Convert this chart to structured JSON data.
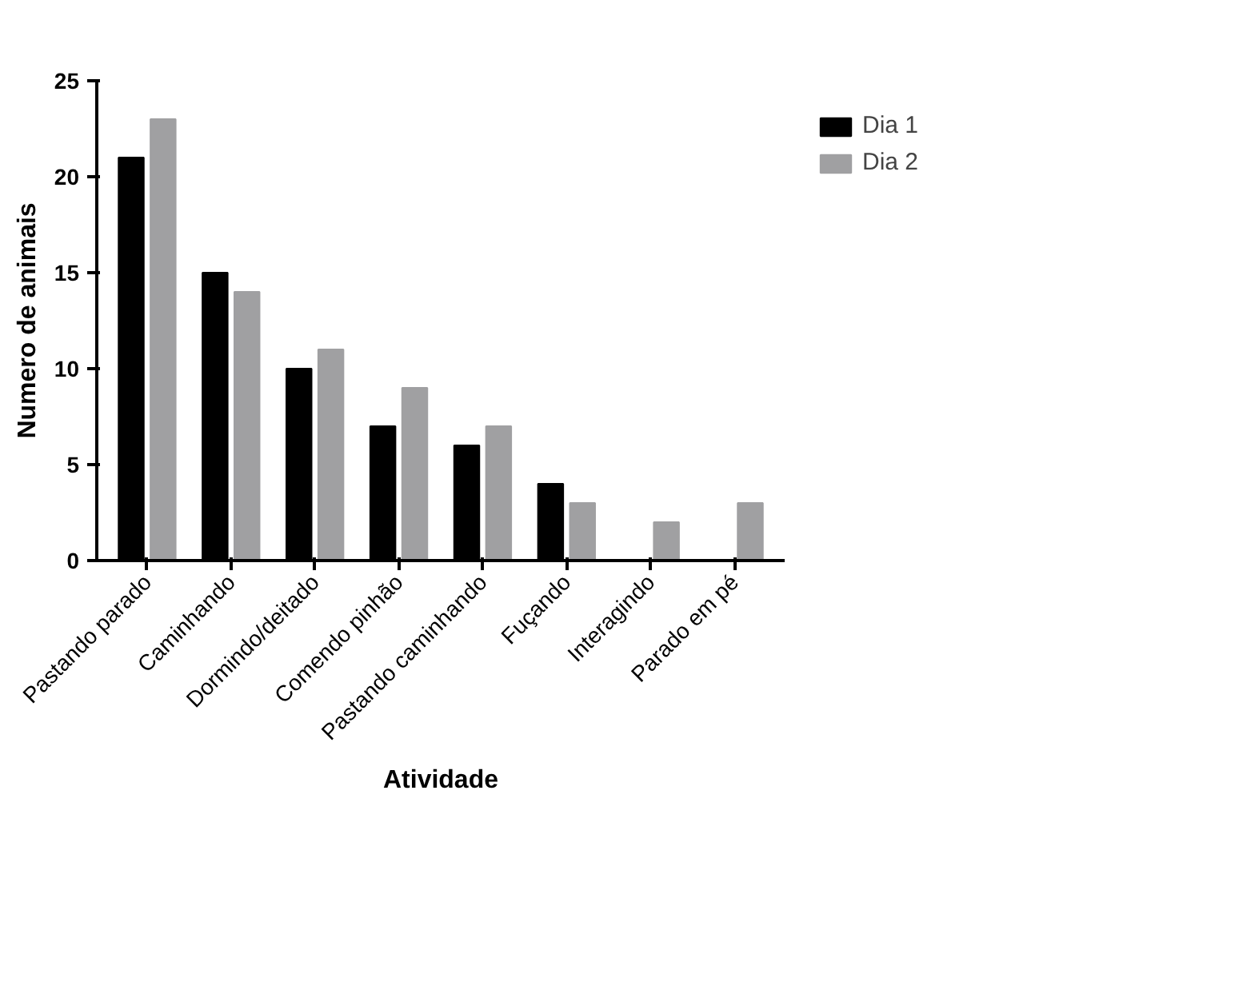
{
  "chart_data": {
    "type": "bar",
    "xlabel": "Atividade",
    "ylabel": "Numero de animais",
    "categories": [
      "Pastando parado",
      "Caminhando",
      "Dormindo/deitado",
      "Comendo pinhão",
      "Pastando caminhando",
      "Fuçando",
      "Interagindo",
      "Parado em pé"
    ],
    "series": [
      {
        "name": "Dia 1",
        "color": "#000000",
        "values": [
          21,
          15,
          10,
          7,
          6,
          4,
          0,
          0
        ]
      },
      {
        "name": "Dia 2",
        "color": "#a0a0a2",
        "values": [
          23,
          14,
          11,
          9,
          7,
          3,
          2,
          3
        ]
      }
    ],
    "ylim": [
      0,
      25
    ],
    "yticks": [
      0,
      5,
      10,
      15,
      20,
      25
    ],
    "grid": false,
    "legend": "top right"
  }
}
